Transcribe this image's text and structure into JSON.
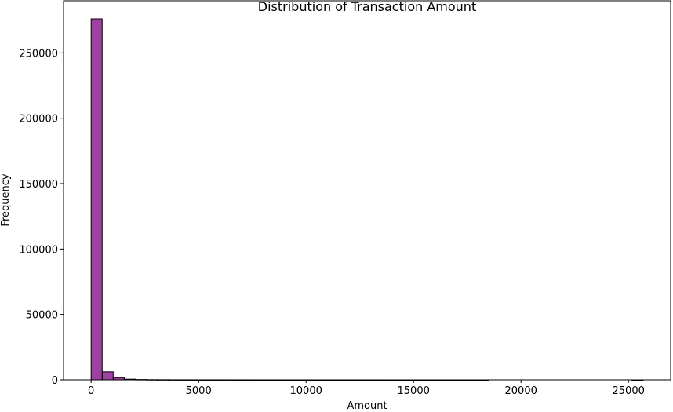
{
  "chart_data": {
    "type": "bar",
    "title": "Distribution of Transaction Amount",
    "xlabel": "Amount",
    "ylabel": "Frequency",
    "bar_color": "#800080",
    "edge_color": "#000000",
    "bins": {
      "start": 0,
      "width": 513.6,
      "counts": [
        276000,
        6100,
        1700,
        480,
        230,
        130,
        80,
        50,
        35,
        25,
        20,
        15,
        12,
        10,
        8,
        7,
        6,
        5,
        4,
        4,
        3,
        3,
        2,
        2,
        2,
        2,
        1,
        1,
        1,
        1,
        1,
        1,
        1,
        1,
        1,
        1,
        0,
        0,
        0,
        0,
        0,
        0,
        0,
        0,
        0,
        0,
        0,
        0,
        0,
        1
      ]
    },
    "xlim": [
      -1284,
      26964
    ],
    "ylim": [
      0,
      289800
    ],
    "x_ticks": [
      0,
      5000,
      10000,
      15000,
      20000,
      25000
    ],
    "y_ticks": [
      0,
      50000,
      100000,
      150000,
      200000,
      250000
    ]
  }
}
